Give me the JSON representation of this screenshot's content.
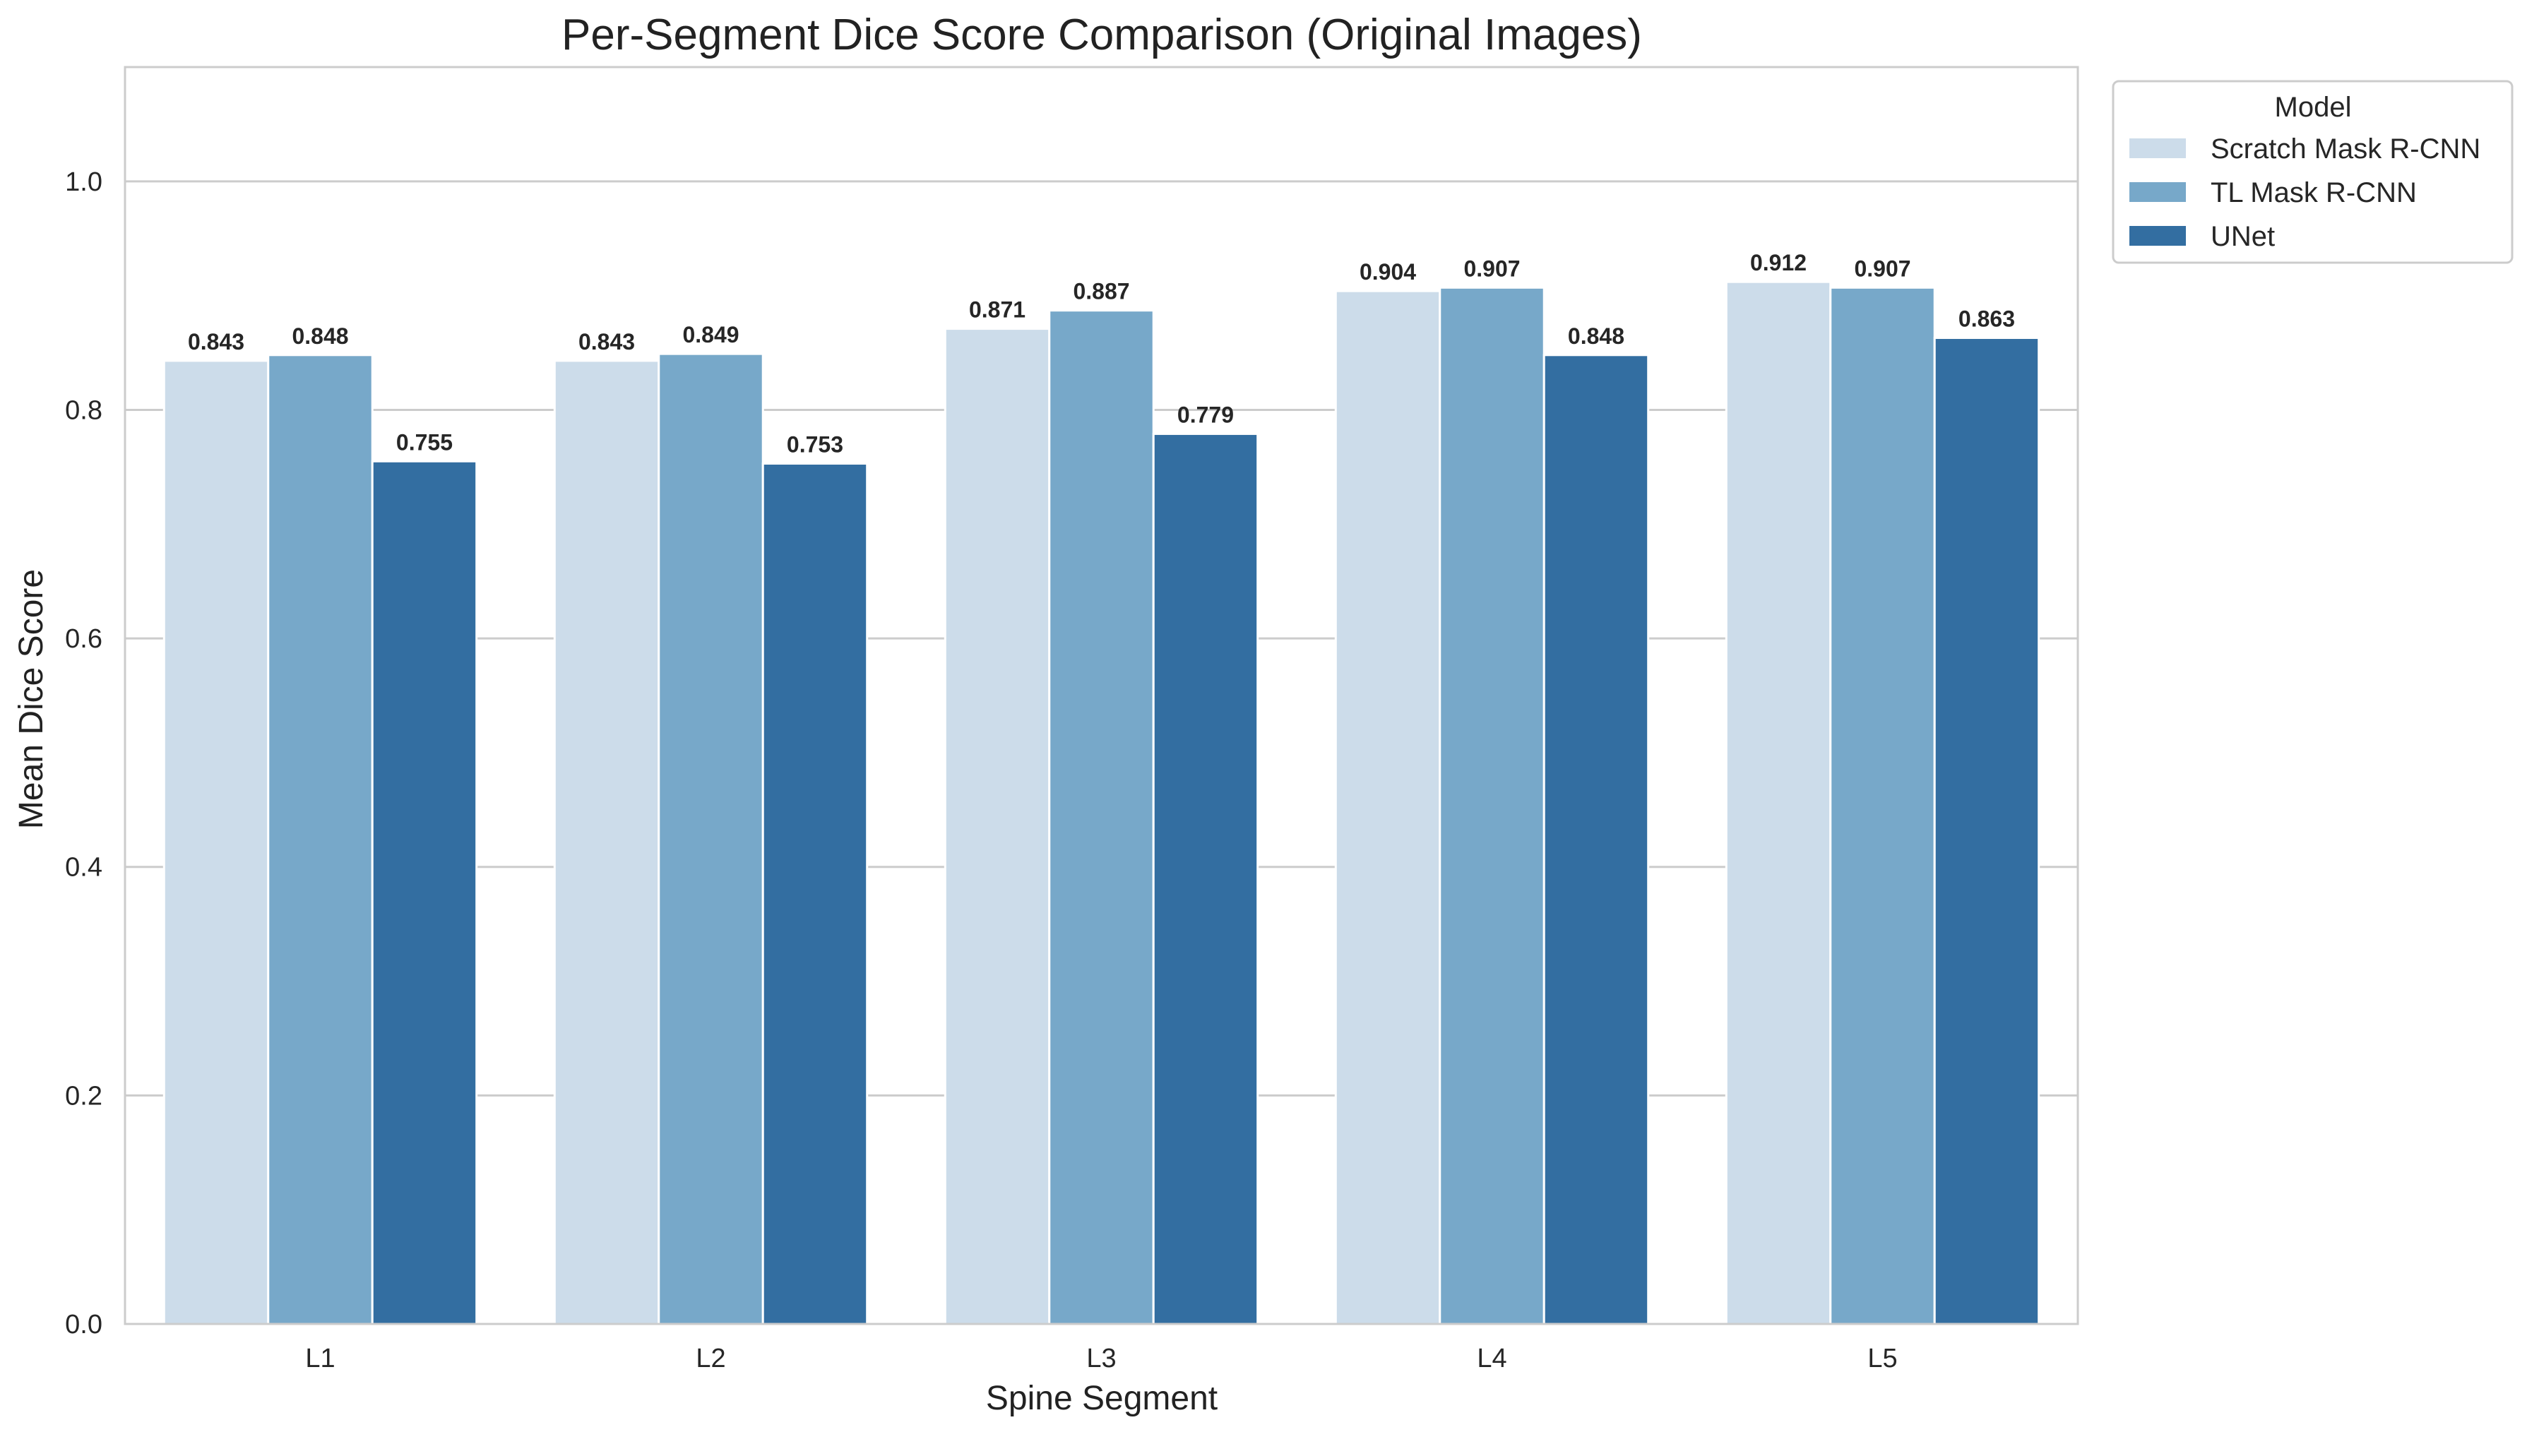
{
  "chart_data": {
    "type": "bar",
    "title": "Per-Segment Dice Score Comparison (Original Images)",
    "xlabel": "Spine Segment",
    "ylabel": "Mean Dice Score",
    "ylim": [
      0,
      1.1
    ],
    "yticks": [
      "0.0",
      "0.2",
      "0.4",
      "0.6",
      "0.8",
      "1.0"
    ],
    "ytick_values": [
      0,
      0.2,
      0.4,
      0.6,
      0.8,
      1.0
    ],
    "grid": "horizontal",
    "categories": [
      "L1",
      "L2",
      "L3",
      "L4",
      "L5"
    ],
    "legend": {
      "title": "Model",
      "placement": "outside-right-top"
    },
    "series": [
      {
        "name": "Scratch Mask R-CNN",
        "color": "#ccdcea",
        "values": [
          0.843,
          0.843,
          0.871,
          0.904,
          0.912
        ],
        "labels": [
          "0.843",
          "0.843",
          "0.871",
          "0.904",
          "0.912"
        ]
      },
      {
        "name": "TL Mask R-CNN",
        "color": "#77a8c9",
        "values": [
          0.848,
          0.849,
          0.887,
          0.907,
          0.907
        ],
        "labels": [
          "0.848",
          "0.849",
          "0.887",
          "0.907",
          "0.907"
        ]
      },
      {
        "name": "UNet",
        "color": "#336ea1",
        "values": [
          0.755,
          0.753,
          0.779,
          0.848,
          0.863
        ],
        "labels": [
          "0.755",
          "0.753",
          "0.779",
          "0.848",
          "0.863"
        ]
      }
    ]
  }
}
